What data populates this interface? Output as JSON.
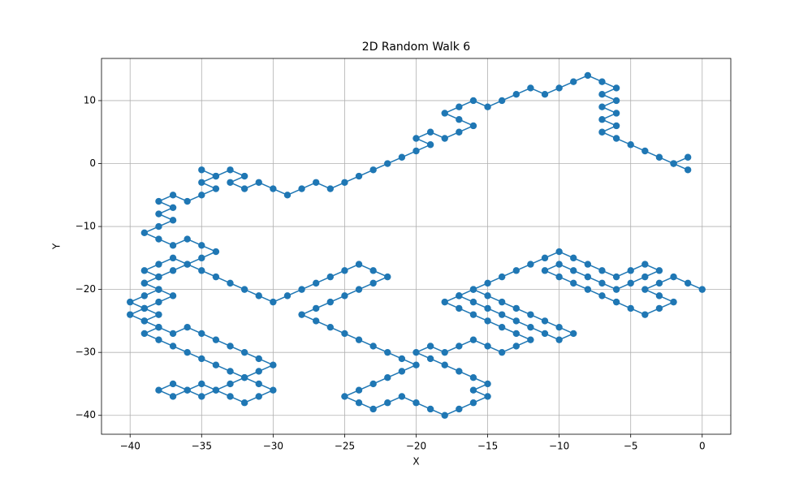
{
  "chart_data": {
    "type": "line",
    "title": "2D Random Walk 6",
    "x_label": "X",
    "y_label": "Y",
    "grid": true,
    "marker": true,
    "xlim": [
      -42,
      2
    ],
    "ylim": [
      -43,
      16.7
    ],
    "xticks": [
      {
        "value": -40,
        "label": "−40"
      },
      {
        "value": -35,
        "label": "−35"
      },
      {
        "value": -30,
        "label": "−30"
      },
      {
        "value": -25,
        "label": "−25"
      },
      {
        "value": -20,
        "label": "−20"
      },
      {
        "value": -15,
        "label": "−15"
      },
      {
        "value": -10,
        "label": "−10"
      },
      {
        "value": -5,
        "label": "−5"
      },
      0
    ],
    "yticks": [
      {
        "value": -40,
        "label": "−40"
      },
      {
        "value": -30,
        "label": "−30"
      },
      {
        "value": -20,
        "label": "−20"
      },
      {
        "value": -10,
        "label": "−10"
      },
      0,
      10
    ],
    "color": "#1f77b4",
    "x": [
      0,
      -1,
      -2,
      -3,
      -4,
      -3,
      -2,
      -3,
      -4,
      -5,
      -6,
      -7,
      -8,
      -9,
      -10,
      -11,
      -10,
      -9,
      -8,
      -7,
      -6,
      -5,
      -4,
      -3,
      -4,
      -5,
      -6,
      -7,
      -8,
      -9,
      -10,
      -11,
      -12,
      -13,
      -14,
      -15,
      -16,
      -17,
      -16,
      -15,
      -14,
      -13,
      -12,
      -11,
      -10,
      -9,
      -10,
      -11,
      -12,
      -13,
      -14,
      -15,
      -16,
      -17,
      -18,
      -17,
      -16,
      -15,
      -14,
      -13,
      -12,
      -13,
      -14,
      -15,
      -16,
      -17,
      -18,
      -19,
      -20,
      -19,
      -18,
      -17,
      -16,
      -15,
      -16,
      -15,
      -16,
      -17,
      -18,
      -19,
      -20,
      -21,
      -22,
      -23,
      -24,
      -25,
      -24,
      -23,
      -22,
      -21,
      -20,
      -21,
      -22,
      -23,
      -24,
      -25,
      -26,
      -27,
      -28,
      -27,
      -26,
      -25,
      -24,
      -23,
      -22,
      -23,
      -24,
      -25,
      -26,
      -27,
      -28,
      -29,
      -30,
      -31,
      -32,
      -33,
      -34,
      -35,
      -36,
      -37,
      -38,
      -39,
      -38,
      -37,
      -38,
      -39,
      -40,
      -39,
      -38,
      -37,
      -36,
      -35,
      -34,
      -33,
      -32,
      -31,
      -30,
      -31,
      -32,
      -33,
      -34,
      -35,
      -36,
      -37,
      -38,
      -37,
      -36,
      -35,
      -34,
      -33,
      -32,
      -31,
      -30,
      -31,
      -32,
      -33,
      -34,
      -35,
      -36,
      -37,
      -38,
      -39,
      -38,
      -39,
      -38,
      -39,
      -40,
      -39,
      -38,
      -39,
      -38,
      -39,
      -38,
      -37,
      -36,
      -35,
      -34,
      -35,
      -36,
      -37,
      -38,
      -39,
      -38,
      -37,
      -38,
      -37,
      -38,
      -37,
      -36,
      -35,
      -34,
      -35,
      -34,
      -35,
      -34,
      -33,
      -32,
      -33,
      -32,
      -31,
      -30,
      -29,
      -28,
      -27,
      -26,
      -25,
      -24,
      -23,
      -22,
      -21,
      -20,
      -19,
      -20,
      -19,
      -18,
      -17,
      -16,
      -17,
      -18,
      -17,
      -16,
      -15,
      -14,
      -13,
      -12,
      -11,
      -10,
      -9,
      -8,
      -7,
      -6,
      -7,
      -6,
      -7,
      -6,
      -7,
      -6,
      -7,
      -6,
      -5,
      -4,
      -3,
      -2,
      -1,
      -2,
      -1
    ],
    "values": [
      -20,
      -19,
      -18,
      -19,
      -20,
      -21,
      -22,
      -23,
      -24,
      -23,
      -22,
      -21,
      -20,
      -19,
      -18,
      -17,
      -16,
      -17,
      -18,
      -19,
      -20,
      -19,
      -18,
      -17,
      -16,
      -17,
      -18,
      -17,
      -16,
      -15,
      -14,
      -15,
      -16,
      -17,
      -18,
      -19,
      -20,
      -21,
      -22,
      -23,
      -24,
      -25,
      -26,
      -27,
      -28,
      -27,
      -26,
      -25,
      -24,
      -23,
      -22,
      -21,
      -20,
      -21,
      -22,
      -23,
      -24,
      -25,
      -26,
      -27,
      -28,
      -29,
      -30,
      -29,
      -28,
      -29,
      -30,
      -29,
      -30,
      -31,
      -32,
      -33,
      -34,
      -35,
      -36,
      -37,
      -38,
      -39,
      -40,
      -39,
      -38,
      -37,
      -38,
      -39,
      -38,
      -37,
      -36,
      -35,
      -34,
      -33,
      -32,
      -31,
      -30,
      -29,
      -28,
      -27,
      -26,
      -25,
      -24,
      -23,
      -22,
      -21,
      -20,
      -19,
      -18,
      -17,
      -16,
      -17,
      -18,
      -19,
      -20,
      -21,
      -22,
      -21,
      -20,
      -19,
      -18,
      -17,
      -16,
      -17,
      -18,
      -19,
      -20,
      -21,
      -22,
      -23,
      -24,
      -25,
      -26,
      -27,
      -26,
      -27,
      -28,
      -29,
      -30,
      -31,
      -32,
      -33,
      -34,
      -35,
      -36,
      -37,
      -36,
      -35,
      -36,
      -37,
      -36,
      -35,
      -36,
      -37,
      -38,
      -37,
      -36,
      -35,
      -34,
      -33,
      -32,
      -31,
      -30,
      -29,
      -28,
      -27,
      -26,
      -25,
      -24,
      -23,
      -22,
      -21,
      -20,
      -19,
      -18,
      -17,
      -16,
      -15,
      -16,
      -15,
      -14,
      -13,
      -12,
      -13,
      -12,
      -11,
      -10,
      -9,
      -8,
      -7,
      -6,
      -5,
      -6,
      -5,
      -4,
      -3,
      -2,
      -1,
      -2,
      -1,
      -2,
      -3,
      -4,
      -3,
      -4,
      -5,
      -4,
      -3,
      -4,
      -3,
      -2,
      -1,
      0,
      1,
      2,
      3,
      4,
      5,
      4,
      5,
      6,
      7,
      8,
      9,
      10,
      9,
      10,
      11,
      12,
      11,
      12,
      13,
      14,
      13,
      12,
      11,
      10,
      9,
      8,
      7,
      6,
      5,
      4,
      3,
      2,
      1,
      0,
      1,
      0,
      -1
    ]
  }
}
